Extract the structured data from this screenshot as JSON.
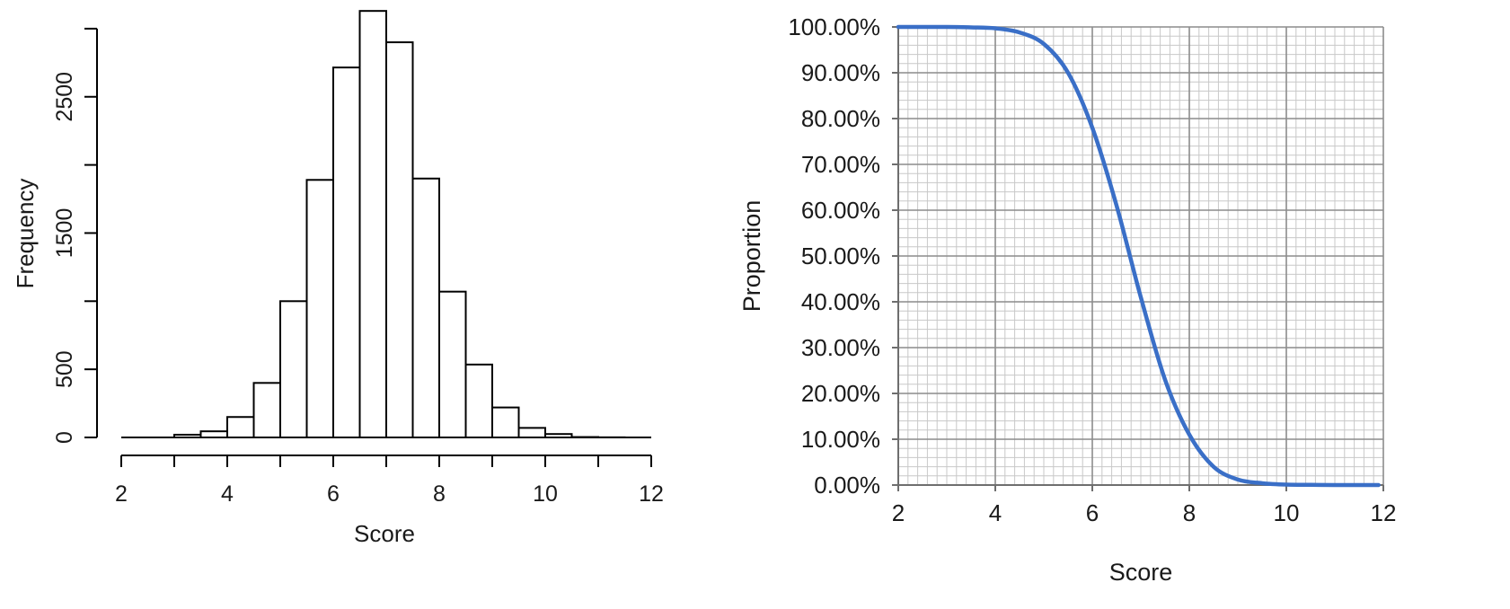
{
  "chart_data": [
    {
      "type": "bar",
      "subtype": "histogram",
      "xlabel": "Score",
      "ylabel": "Frequency",
      "bin_width": 0.5,
      "bins": [
        {
          "start": 3.0,
          "end": 3.5,
          "value": 20
        },
        {
          "start": 3.5,
          "end": 4.0,
          "value": 45
        },
        {
          "start": 4.0,
          "end": 4.5,
          "value": 150
        },
        {
          "start": 4.5,
          "end": 5.0,
          "value": 400
        },
        {
          "start": 5.0,
          "end": 5.5,
          "value": 1000
        },
        {
          "start": 5.5,
          "end": 6.0,
          "value": 1890
        },
        {
          "start": 6.0,
          "end": 6.5,
          "value": 2715
        },
        {
          "start": 6.5,
          "end": 7.0,
          "value": 3130
        },
        {
          "start": 7.0,
          "end": 7.5,
          "value": 2900
        },
        {
          "start": 7.5,
          "end": 8.0,
          "value": 1900
        },
        {
          "start": 8.0,
          "end": 8.5,
          "value": 1070
        },
        {
          "start": 8.5,
          "end": 9.0,
          "value": 535
        },
        {
          "start": 9.0,
          "end": 9.5,
          "value": 220
        },
        {
          "start": 9.5,
          "end": 10.0,
          "value": 70
        },
        {
          "start": 10.0,
          "end": 10.5,
          "value": 25
        },
        {
          "start": 10.5,
          "end": 11.0,
          "value": 3
        },
        {
          "start": 11.0,
          "end": 11.5,
          "value": 1
        },
        {
          "start": 11.5,
          "end": 12.0,
          "value": 0
        }
      ],
      "xlim": [
        2,
        12
      ],
      "ylim": [
        0,
        3000
      ],
      "xticks": [
        "2",
        "4",
        "6",
        "8",
        "10",
        "12"
      ],
      "yticks": [
        "0",
        "500",
        "1500",
        "2500"
      ],
      "grid": false,
      "colors": {
        "bar_fill": "#ffffff",
        "bar_stroke": "#000000",
        "axis": "#000000"
      }
    },
    {
      "type": "line",
      "xlabel": "Score",
      "ylabel": "Proportion",
      "x": [
        2.0,
        3.0,
        3.5,
        4.0,
        4.5,
        5.0,
        5.5,
        6.0,
        6.5,
        7.0,
        7.5,
        8.0,
        8.5,
        9.0,
        9.5,
        10.0,
        10.5,
        11.0,
        11.5,
        11.9
      ],
      "y": [
        100.0,
        100.0,
        99.9,
        99.7,
        98.8,
        96.3,
        90.0,
        78.0,
        61.0,
        41.0,
        23.0,
        11.0,
        4.0,
        1.2,
        0.4,
        0.1,
        0.05,
        0.0,
        0.0,
        0.0
      ],
      "xlim": [
        2,
        12
      ],
      "ylim": [
        0,
        100
      ],
      "xticks": [
        "2",
        "4",
        "6",
        "8",
        "10",
        "12"
      ],
      "yticks": [
        "0.00%",
        "10.00%",
        "20.00%",
        "30.00%",
        "40.00%",
        "50.00%",
        "60.00%",
        "70.00%",
        "80.00%",
        "90.00%",
        "100.00%"
      ],
      "grid": true,
      "colors": {
        "line": "#3a6fc7",
        "major_grid": "#8c8c8c",
        "minor_grid": "#c8c8c8",
        "axis": "#6e6e6e"
      }
    }
  ]
}
